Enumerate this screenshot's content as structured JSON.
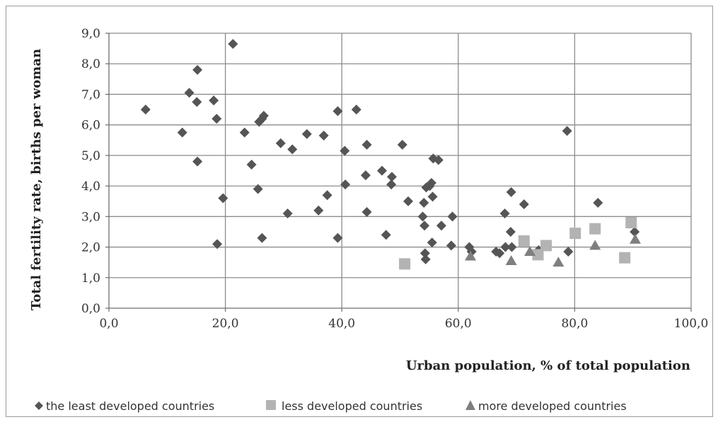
{
  "chart_data": {
    "type": "scatter",
    "title": "",
    "xlabel": "Urban population, % of total population",
    "ylabel": "Total fertility rate,  births per woman",
    "xlim": [
      0,
      100
    ],
    "ylim": [
      0,
      9
    ],
    "x_ticks": [
      "0,0",
      "20,0",
      "40,0",
      "60,0",
      "80,0",
      "100,0"
    ],
    "y_ticks": [
      "0,0",
      "1,0",
      "2,0",
      "3,0",
      "4,0",
      "5,0",
      "6,0",
      "7,0",
      "8,0",
      "9,0"
    ],
    "x_tick_values": [
      0,
      20,
      40,
      60,
      80,
      100
    ],
    "y_tick_values": [
      0,
      1,
      2,
      3,
      4,
      5,
      6,
      7,
      8,
      9
    ],
    "grid": true,
    "legend_position": "bottom",
    "series": [
      {
        "name": "the least developed countries",
        "marker": "diamond",
        "color": "#555555",
        "points": [
          [
            6.3,
            6.5
          ],
          [
            12.6,
            5.75
          ],
          [
            13.8,
            7.05
          ],
          [
            15.2,
            7.8
          ],
          [
            15.1,
            6.75
          ],
          [
            15.2,
            4.8
          ],
          [
            18.0,
            6.8
          ],
          [
            18.5,
            6.2
          ],
          [
            18.6,
            2.1
          ],
          [
            19.6,
            3.6
          ],
          [
            21.3,
            8.65
          ],
          [
            23.3,
            5.75
          ],
          [
            24.5,
            4.7
          ],
          [
            25.8,
            6.1
          ],
          [
            26.3,
            6.2
          ],
          [
            26.6,
            6.3
          ],
          [
            25.6,
            3.9
          ],
          [
            26.3,
            2.3
          ],
          [
            29.5,
            5.4
          ],
          [
            31.5,
            5.2
          ],
          [
            30.7,
            3.1
          ],
          [
            34.0,
            5.7
          ],
          [
            36.9,
            5.65
          ],
          [
            36.0,
            3.2
          ],
          [
            37.5,
            3.7
          ],
          [
            39.3,
            6.45
          ],
          [
            42.5,
            6.5
          ],
          [
            40.5,
            5.15
          ],
          [
            40.6,
            4.05
          ],
          [
            39.3,
            2.3
          ],
          [
            44.3,
            5.35
          ],
          [
            44.1,
            4.35
          ],
          [
            44.3,
            3.15
          ],
          [
            46.9,
            4.5
          ],
          [
            48.6,
            4.3
          ],
          [
            48.5,
            4.05
          ],
          [
            47.6,
            2.4
          ],
          [
            50.4,
            5.35
          ],
          [
            51.4,
            3.5
          ],
          [
            53.9,
            3.0
          ],
          [
            54.2,
            2.7
          ],
          [
            54.1,
            3.45
          ],
          [
            54.5,
            3.95
          ],
          [
            55.4,
            4.1
          ],
          [
            55.1,
            4.0
          ],
          [
            55.7,
            4.9
          ],
          [
            56.6,
            4.85
          ],
          [
            55.6,
            3.65
          ],
          [
            57.1,
            2.7
          ],
          [
            59.0,
            3.0
          ],
          [
            55.5,
            2.15
          ],
          [
            54.3,
            1.8
          ],
          [
            54.4,
            1.6
          ],
          [
            58.8,
            2.05
          ],
          [
            61.9,
            2.0
          ],
          [
            62.3,
            1.85
          ],
          [
            66.5,
            1.85
          ],
          [
            67.1,
            1.8
          ],
          [
            68.1,
            2.0
          ],
          [
            69.2,
            2.0
          ],
          [
            68.0,
            3.1
          ],
          [
            69.1,
            3.8
          ],
          [
            71.3,
            3.4
          ],
          [
            69.0,
            2.5
          ],
          [
            73.8,
            1.9
          ],
          [
            78.7,
            5.8
          ],
          [
            78.9,
            1.85
          ],
          [
            84.0,
            3.45
          ],
          [
            90.3,
            2.5
          ]
        ]
      },
      {
        "name": "less developed countries",
        "marker": "square",
        "color": "#b3b3b3",
        "points": [
          [
            50.8,
            1.45
          ],
          [
            71.3,
            2.2
          ],
          [
            75.1,
            2.05
          ],
          [
            73.7,
            1.75
          ],
          [
            80.1,
            2.45
          ],
          [
            83.5,
            2.6
          ],
          [
            89.7,
            2.8
          ],
          [
            88.6,
            1.65
          ]
        ]
      },
      {
        "name": "more developed countries",
        "marker": "triangle",
        "color": "#7f7f7f",
        "points": [
          [
            62.1,
            1.7
          ],
          [
            69.1,
            1.55
          ],
          [
            72.3,
            1.85
          ],
          [
            77.2,
            1.5
          ],
          [
            83.5,
            2.05
          ],
          [
            90.4,
            2.25
          ]
        ]
      }
    ]
  }
}
